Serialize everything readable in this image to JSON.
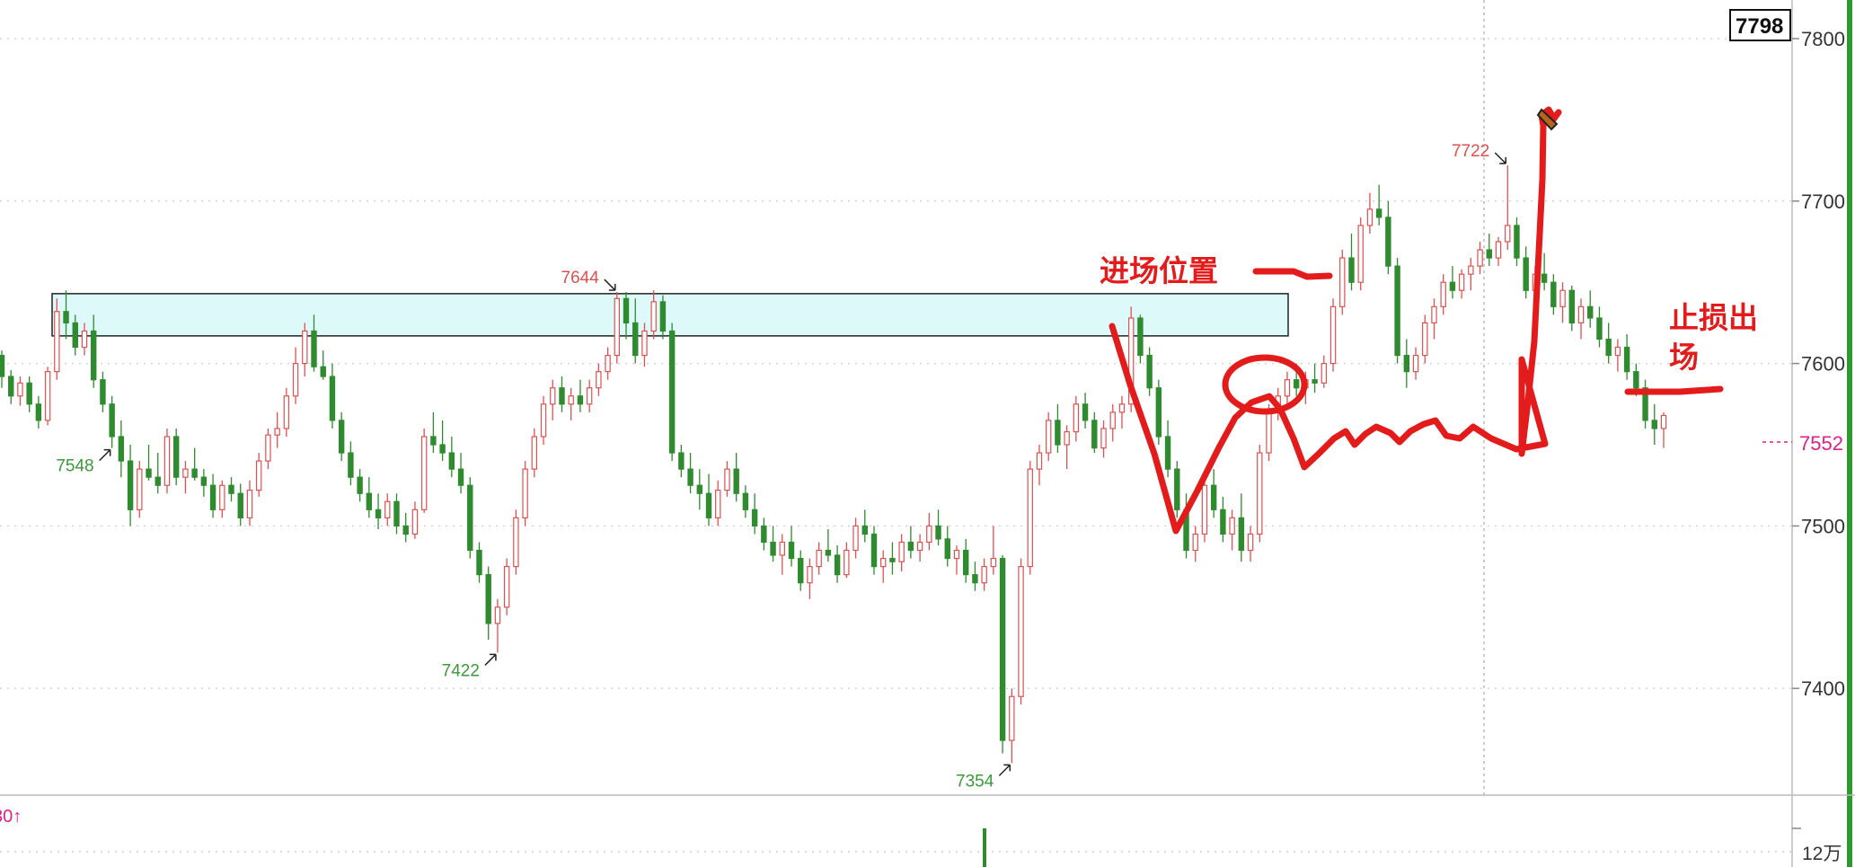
{
  "chart_data": {
    "type": "candlestick",
    "title": "",
    "ylim": [
      7335,
      7805
    ],
    "y_ticks": [
      "7800",
      "7700",
      "7600",
      "7500",
      "7400"
    ],
    "current_price_label": "7552",
    "top_box_label": "7798",
    "extremes": [
      {
        "label": "7644",
        "value": 7644,
        "color": "#e05050",
        "role": "high"
      },
      {
        "label": "7422",
        "value": 7422,
        "color": "#3a9a3a",
        "role": "low"
      },
      {
        "label": "7354",
        "value": 7354,
        "color": "#3a9a3a",
        "role": "low"
      },
      {
        "label": "7722",
        "value": 7722,
        "color": "#e05050",
        "role": "high"
      },
      {
        "label": "7548",
        "value": 7548,
        "color": "#3a9a3a",
        "role": "low"
      }
    ],
    "zone": {
      "top": 7643,
      "bottom": 7617
    },
    "annotations": [
      {
        "text": "进场位置",
        "color": "#e41b1b"
      },
      {
        "text": "止损出场",
        "line1": "止损出",
        "line2": "场",
        "color": "#e41b1b"
      }
    ],
    "volume_panel": {
      "tick_label": "12万",
      "indicator_fragment": "30↑"
    },
    "colors": {
      "up": "#e05050",
      "down": "#2e8b2e",
      "ink": "#e41b1b"
    },
    "candles": [
      [
        7605,
        7608,
        7585,
        7592
      ],
      [
        7592,
        7596,
        7575,
        7580
      ],
      [
        7580,
        7592,
        7574,
        7588
      ],
      [
        7588,
        7592,
        7570,
        7575
      ],
      [
        7575,
        7580,
        7560,
        7565
      ],
      [
        7565,
        7598,
        7562,
        7595
      ],
      [
        7595,
        7640,
        7590,
        7632
      ],
      [
        7632,
        7645,
        7615,
        7625
      ],
      [
        7625,
        7630,
        7605,
        7610
      ],
      [
        7610,
        7625,
        7605,
        7620
      ],
      [
        7620,
        7630,
        7585,
        7590
      ],
      [
        7590,
        7595,
        7570,
        7575
      ],
      [
        7575,
        7580,
        7548,
        7555
      ],
      [
        7555,
        7565,
        7530,
        7540
      ],
      [
        7540,
        7550,
        7500,
        7510
      ],
      [
        7510,
        7540,
        7505,
        7535
      ],
      [
        7535,
        7550,
        7528,
        7530
      ],
      [
        7530,
        7545,
        7520,
        7525
      ],
      [
        7525,
        7560,
        7520,
        7555
      ],
      [
        7555,
        7560,
        7525,
        7530
      ],
      [
        7530,
        7540,
        7520,
        7535
      ],
      [
        7535,
        7548,
        7528,
        7530
      ],
      [
        7530,
        7535,
        7518,
        7525
      ],
      [
        7525,
        7532,
        7505,
        7510
      ],
      [
        7510,
        7528,
        7505,
        7525
      ],
      [
        7525,
        7530,
        7515,
        7520
      ],
      [
        7520,
        7526,
        7500,
        7505
      ],
      [
        7505,
        7528,
        7500,
        7522
      ],
      [
        7522,
        7545,
        7518,
        7540
      ],
      [
        7540,
        7560,
        7535,
        7556
      ],
      [
        7556,
        7570,
        7548,
        7560
      ],
      [
        7560,
        7585,
        7555,
        7580
      ],
      [
        7580,
        7610,
        7575,
        7600
      ],
      [
        7600,
        7625,
        7592,
        7620
      ],
      [
        7620,
        7630,
        7595,
        7598
      ],
      [
        7598,
        7608,
        7590,
        7592
      ],
      [
        7592,
        7600,
        7560,
        7565
      ],
      [
        7565,
        7570,
        7540,
        7545
      ],
      [
        7545,
        7552,
        7525,
        7530
      ],
      [
        7530,
        7535,
        7515,
        7520
      ],
      [
        7520,
        7530,
        7505,
        7510
      ],
      [
        7510,
        7520,
        7498,
        7505
      ],
      [
        7505,
        7520,
        7500,
        7515
      ],
      [
        7515,
        7520,
        7495,
        7500
      ],
      [
        7500,
        7508,
        7490,
        7495
      ],
      [
        7495,
        7515,
        7492,
        7510
      ],
      [
        7510,
        7560,
        7508,
        7555
      ],
      [
        7555,
        7570,
        7545,
        7550
      ],
      [
        7550,
        7565,
        7540,
        7545
      ],
      [
        7545,
        7555,
        7530,
        7535
      ],
      [
        7535,
        7545,
        7520,
        7525
      ],
      [
        7525,
        7530,
        7480,
        7485
      ],
      [
        7485,
        7490,
        7465,
        7470
      ],
      [
        7470,
        7475,
        7430,
        7440
      ],
      [
        7440,
        7455,
        7422,
        7450
      ],
      [
        7450,
        7480,
        7445,
        7475
      ],
      [
        7475,
        7510,
        7470,
        7505
      ],
      [
        7505,
        7540,
        7500,
        7535
      ],
      [
        7535,
        7560,
        7530,
        7555
      ],
      [
        7555,
        7580,
        7550,
        7575
      ],
      [
        7575,
        7590,
        7565,
        7585
      ],
      [
        7585,
        7592,
        7570,
        7575
      ],
      [
        7575,
        7585,
        7565,
        7580
      ],
      [
        7580,
        7590,
        7570,
        7575
      ],
      [
        7575,
        7590,
        7570,
        7585
      ],
      [
        7585,
        7600,
        7580,
        7595
      ],
      [
        7595,
        7610,
        7590,
        7605
      ],
      [
        7605,
        7644,
        7600,
        7640
      ],
      [
        7640,
        7644,
        7615,
        7625
      ],
      [
        7625,
        7640,
        7600,
        7605
      ],
      [
        7605,
        7625,
        7598,
        7620
      ],
      [
        7620,
        7645,
        7615,
        7638
      ],
      [
        7638,
        7642,
        7615,
        7620
      ],
      [
        7620,
        7625,
        7540,
        7545
      ],
      [
        7545,
        7550,
        7530,
        7535
      ],
      [
        7535,
        7545,
        7520,
        7525
      ],
      [
        7525,
        7535,
        7510,
        7520
      ],
      [
        7520,
        7532,
        7500,
        7505
      ],
      [
        7505,
        7528,
        7500,
        7522
      ],
      [
        7522,
        7540,
        7518,
        7535
      ],
      [
        7535,
        7545,
        7515,
        7520
      ],
      [
        7520,
        7525,
        7505,
        7510
      ],
      [
        7510,
        7520,
        7495,
        7500
      ],
      [
        7500,
        7505,
        7485,
        7490
      ],
      [
        7490,
        7500,
        7478,
        7482
      ],
      [
        7482,
        7495,
        7470,
        7490
      ],
      [
        7490,
        7500,
        7475,
        7480
      ],
      [
        7480,
        7485,
        7460,
        7465
      ],
      [
        7465,
        7480,
        7455,
        7475
      ],
      [
        7475,
        7490,
        7470,
        7485
      ],
      [
        7485,
        7498,
        7478,
        7482
      ],
      [
        7482,
        7488,
        7465,
        7470
      ],
      [
        7470,
        7490,
        7468,
        7485
      ],
      [
        7485,
        7505,
        7480,
        7500
      ],
      [
        7500,
        7510,
        7490,
        7495
      ],
      [
        7495,
        7500,
        7470,
        7475
      ],
      [
        7475,
        7485,
        7465,
        7480
      ],
      [
        7480,
        7490,
        7470,
        7478
      ],
      [
        7478,
        7495,
        7472,
        7490
      ],
      [
        7490,
        7500,
        7480,
        7485
      ],
      [
        7485,
        7495,
        7478,
        7490
      ],
      [
        7490,
        7508,
        7485,
        7500
      ],
      [
        7500,
        7510,
        7488,
        7492
      ],
      [
        7492,
        7500,
        7475,
        7480
      ],
      [
        7480,
        7488,
        7470,
        7485
      ],
      [
        7485,
        7492,
        7465,
        7470
      ],
      [
        7470,
        7478,
        7460,
        7465
      ],
      [
        7465,
        7480,
        7460,
        7475
      ],
      [
        7475,
        7500,
        7470,
        7480
      ],
      [
        7480,
        7482,
        7360,
        7368
      ],
      [
        7368,
        7400,
        7354,
        7395
      ],
      [
        7395,
        7480,
        7390,
        7475
      ],
      [
        7475,
        7540,
        7470,
        7535
      ],
      [
        7535,
        7550,
        7525,
        7545
      ],
      [
        7545,
        7570,
        7540,
        7565
      ],
      [
        7565,
        7575,
        7545,
        7550
      ],
      [
        7550,
        7562,
        7535,
        7558
      ],
      [
        7558,
        7580,
        7552,
        7575
      ],
      [
        7575,
        7582,
        7560,
        7565
      ],
      [
        7565,
        7570,
        7545,
        7548
      ],
      [
        7548,
        7565,
        7542,
        7560
      ],
      [
        7560,
        7575,
        7552,
        7570
      ],
      [
        7570,
        7580,
        7560,
        7575
      ],
      [
        7575,
        7635,
        7570,
        7628
      ],
      [
        7628,
        7630,
        7600,
        7605
      ],
      [
        7605,
        7610,
        7580,
        7585
      ],
      [
        7585,
        7590,
        7550,
        7555
      ],
      [
        7555,
        7565,
        7530,
        7535
      ],
      [
        7535,
        7540,
        7505,
        7510
      ],
      [
        7510,
        7520,
        7480,
        7485
      ],
      [
        7485,
        7500,
        7478,
        7495
      ],
      [
        7495,
        7530,
        7490,
        7525
      ],
      [
        7525,
        7535,
        7505,
        7510
      ],
      [
        7510,
        7518,
        7490,
        7495
      ],
      [
        7495,
        7510,
        7485,
        7505
      ],
      [
        7505,
        7520,
        7478,
        7485
      ],
      [
        7485,
        7500,
        7478,
        7495
      ],
      [
        7495,
        7550,
        7490,
        7545
      ],
      [
        7545,
        7575,
        7540,
        7570
      ],
      [
        7570,
        7585,
        7565,
        7580
      ],
      [
        7580,
        7595,
        7575,
        7590
      ],
      [
        7590,
        7600,
        7580,
        7585
      ],
      [
        7585,
        7595,
        7575,
        7590
      ],
      [
        7590,
        7600,
        7582,
        7588
      ],
      [
        7588,
        7605,
        7585,
        7600
      ],
      [
        7600,
        7640,
        7595,
        7635
      ],
      [
        7635,
        7670,
        7630,
        7665
      ],
      [
        7665,
        7680,
        7645,
        7650
      ],
      [
        7650,
        7690,
        7645,
        7685
      ],
      [
        7685,
        7705,
        7680,
        7695
      ],
      [
        7695,
        7710,
        7685,
        7690
      ],
      [
        7690,
        7700,
        7655,
        7660
      ],
      [
        7660,
        7665,
        7600,
        7605
      ],
      [
        7605,
        7615,
        7585,
        7595
      ],
      [
        7595,
        7610,
        7590,
        7605
      ],
      [
        7605,
        7630,
        7600,
        7625
      ],
      [
        7625,
        7640,
        7615,
        7635
      ],
      [
        7635,
        7655,
        7630,
        7650
      ],
      [
        7650,
        7660,
        7640,
        7645
      ],
      [
        7645,
        7658,
        7640,
        7655
      ],
      [
        7655,
        7665,
        7645,
        7660
      ],
      [
        7660,
        7675,
        7655,
        7670
      ],
      [
        7670,
        7680,
        7660,
        7665
      ],
      [
        7665,
        7678,
        7660,
        7675
      ],
      [
        7675,
        7722,
        7670,
        7685
      ],
      [
        7685,
        7690,
        7660,
        7665
      ],
      [
        7665,
        7672,
        7640,
        7645
      ],
      [
        7645,
        7660,
        7630,
        7655
      ],
      [
        7655,
        7668,
        7645,
        7650
      ],
      [
        7650,
        7655,
        7630,
        7635
      ],
      [
        7635,
        7650,
        7625,
        7645
      ],
      [
        7645,
        7648,
        7620,
        7625
      ],
      [
        7625,
        7640,
        7615,
        7635
      ],
      [
        7635,
        7645,
        7622,
        7628
      ],
      [
        7628,
        7635,
        7610,
        7615
      ],
      [
        7615,
        7625,
        7600,
        7605
      ],
      [
        7605,
        7615,
        7595,
        7610
      ],
      [
        7610,
        7618,
        7590,
        7595
      ],
      [
        7595,
        7600,
        7580,
        7585
      ],
      [
        7585,
        7590,
        7560,
        7565
      ],
      [
        7565,
        7575,
        7550,
        7560
      ],
      [
        7560,
        7570,
        7548,
        7568
      ]
    ]
  }
}
